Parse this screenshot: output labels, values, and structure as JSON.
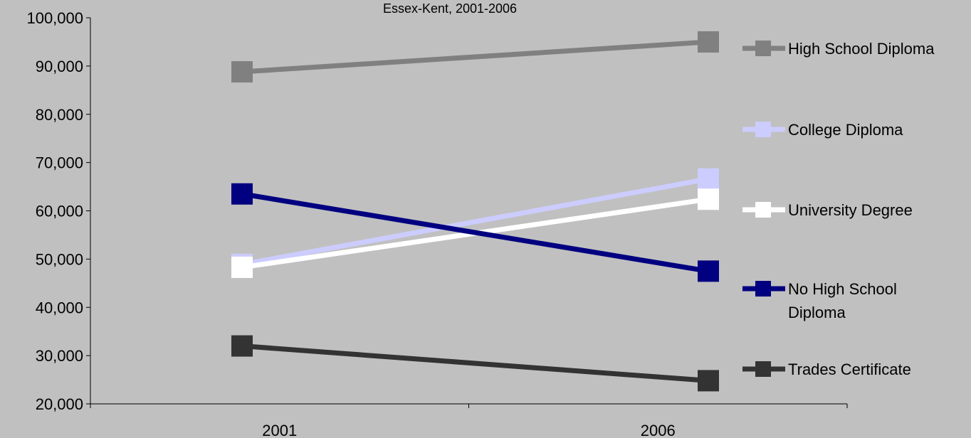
{
  "chart_data": {
    "type": "line",
    "title": "Essex-Kent, 2001-2006",
    "xlabel": "",
    "ylabel": "",
    "categories": [
      "2001",
      "2006"
    ],
    "ylim": [
      20000,
      100000
    ],
    "yticks": [
      20000,
      30000,
      40000,
      50000,
      60000,
      70000,
      80000,
      90000,
      100000
    ],
    "ytick_labels": [
      "20,000",
      "30,000",
      "40,000",
      "50,000",
      "60,000",
      "70,000",
      "80,000",
      "90,000",
      "100,000"
    ],
    "grid": false,
    "legend_position": "right",
    "series": [
      {
        "name": "High School Diploma",
        "values": [
          88800,
          95000
        ],
        "color": "#808080",
        "legend_lines": [
          "High School Diploma"
        ]
      },
      {
        "name": "College Diploma",
        "values": [
          48900,
          66600
        ],
        "color": "#ccccff",
        "legend_lines": [
          "College Diploma"
        ]
      },
      {
        "name": "University Degree",
        "values": [
          48300,
          62400
        ],
        "color": "#ffffff",
        "legend_lines": [
          "University Degree"
        ]
      },
      {
        "name": "No High School Diploma",
        "values": [
          63500,
          47500
        ],
        "color": "#000080",
        "legend_lines": [
          "No High School",
          "Diploma"
        ]
      },
      {
        "name": "Trades Certificate",
        "values": [
          32000,
          24800
        ],
        "color": "#333333",
        "legend_lines": [
          "Trades Certificate"
        ]
      }
    ]
  }
}
